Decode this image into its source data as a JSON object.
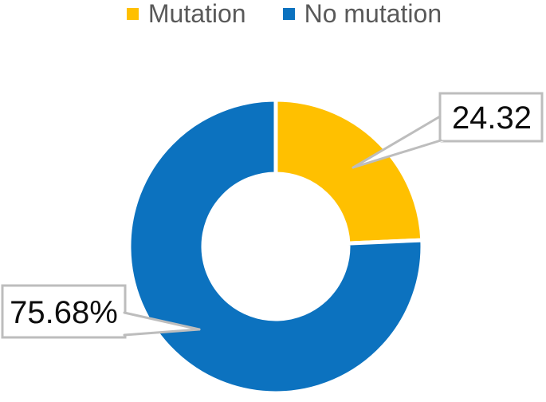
{
  "chart_data": {
    "type": "pie",
    "subtype": "donut",
    "title": "",
    "categories": [
      "Mutation",
      "No mutation"
    ],
    "values": [
      24.32,
      75.68
    ],
    "unit": "percent",
    "colors": [
      "#FFC000",
      "#0C72BF"
    ],
    "data_labels": [
      "24.32",
      "75.68%"
    ],
    "legend_position": "top",
    "start_angle_deg": 0,
    "direction": "clockwise",
    "hole_ratio": 0.495
  },
  "legend": {
    "items": [
      {
        "label": "Mutation",
        "color": "#FFC000"
      },
      {
        "label": "No mutation",
        "color": "#0C72BF"
      }
    ]
  },
  "callouts": [
    {
      "text": "24.32",
      "series": "Mutation"
    },
    {
      "text": "75.68%",
      "series": "No mutation"
    }
  ],
  "colors": {
    "mutation": "#FFC000",
    "no_mutation": "#0C72BF",
    "legend_text": "#595959",
    "callout_border": "#BDBDBD",
    "label_text": "#0D0D0D",
    "background": "#FFFFFF"
  }
}
